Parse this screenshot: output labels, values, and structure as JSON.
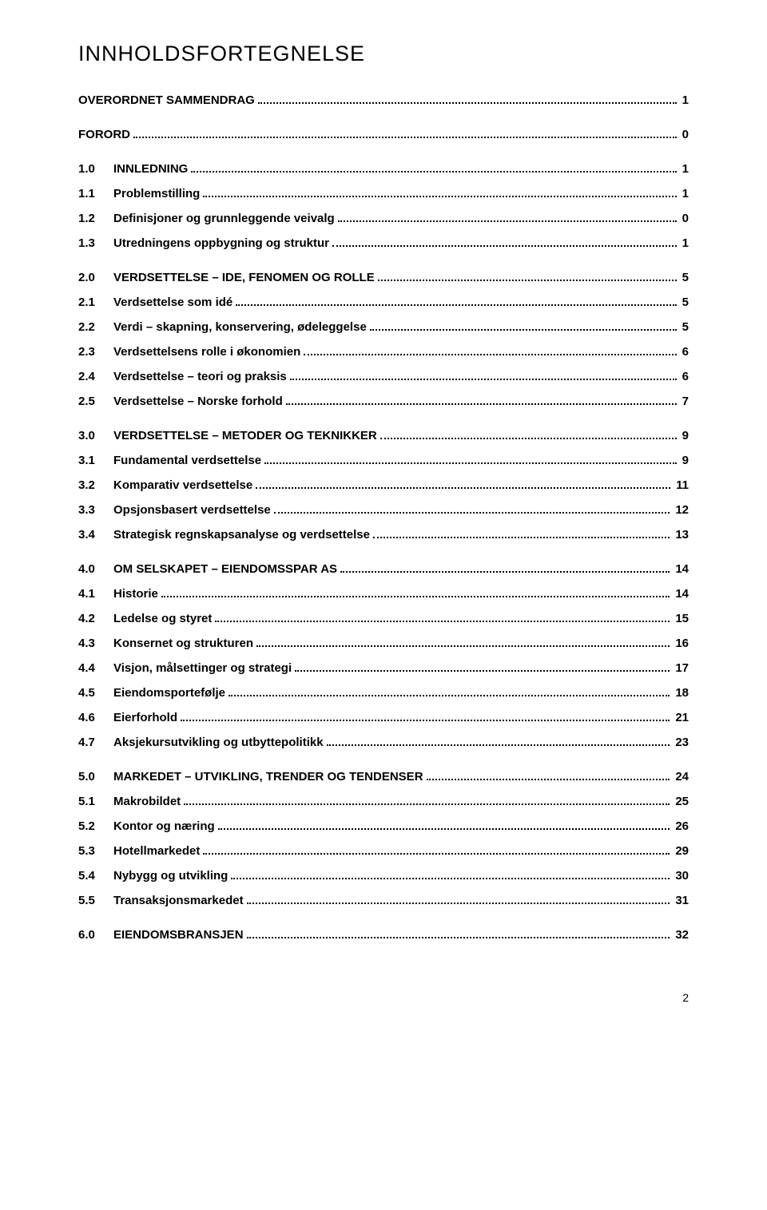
{
  "title": "INNHOLDSFORTEGNELSE",
  "footer_page": "2",
  "entries": [
    {
      "level": "top",
      "first": true,
      "num": "",
      "label": "OVERORDNET SAMMENDRAG",
      "page": "1"
    },
    {
      "level": "top",
      "num": "",
      "label": "FORORD",
      "page": "0"
    },
    {
      "level": "top",
      "num": "1.0",
      "label": "INNLEDNING",
      "page": "1"
    },
    {
      "level": "sub",
      "num": "1.1",
      "label": "Problemstilling",
      "page": "1"
    },
    {
      "level": "sub",
      "num": "1.2",
      "label": "Definisjoner og grunnleggende veivalg",
      "page": "0"
    },
    {
      "level": "sub",
      "num": "1.3",
      "label": "Utredningens oppbygning og struktur",
      "page": "1"
    },
    {
      "level": "top",
      "num": "2.0",
      "label": "VERDSETTELSE – IDE, FENOMEN OG ROLLE",
      "page": "5"
    },
    {
      "level": "sub",
      "num": "2.1",
      "label": "Verdsettelse som idé",
      "page": "5"
    },
    {
      "level": "sub",
      "num": "2.2",
      "label": "Verdi – skapning, konservering, ødeleggelse",
      "page": "5"
    },
    {
      "level": "sub",
      "num": "2.3",
      "label": "Verdsettelsens rolle i økonomien",
      "page": "6"
    },
    {
      "level": "sub",
      "num": "2.4",
      "label": "Verdsettelse – teori og praksis",
      "page": "6"
    },
    {
      "level": "sub",
      "num": "2.5",
      "label": "Verdsettelse – Norske forhold",
      "page": "7"
    },
    {
      "level": "top",
      "num": "3.0",
      "label": "VERDSETTELSE – METODER OG TEKNIKKER",
      "page": "9"
    },
    {
      "level": "sub",
      "num": "3.1",
      "label": "Fundamental verdsettelse",
      "page": "9"
    },
    {
      "level": "sub",
      "num": "3.2",
      "label": "Komparativ verdsettelse",
      "page": "11"
    },
    {
      "level": "sub",
      "num": "3.3",
      "label": "Opsjonsbasert verdsettelse",
      "page": "12"
    },
    {
      "level": "sub",
      "num": "3.4",
      "label": "Strategisk regnskapsanalyse og verdsettelse",
      "page": "13"
    },
    {
      "level": "top",
      "num": "4.0",
      "label": "OM SELSKAPET – EIENDOMSSPAR AS",
      "page": "14"
    },
    {
      "level": "sub",
      "num": "4.1",
      "label": "Historie",
      "page": "14"
    },
    {
      "level": "sub",
      "num": "4.2",
      "label": "Ledelse og styret",
      "page": "15"
    },
    {
      "level": "sub",
      "num": "4.3",
      "label": "Konsernet og strukturen",
      "page": "16"
    },
    {
      "level": "sub",
      "num": "4.4",
      "label": "Visjon, målsettinger og strategi",
      "page": "17"
    },
    {
      "level": "sub",
      "num": "4.5",
      "label": "Eiendomsportefølje",
      "page": "18"
    },
    {
      "level": "sub",
      "num": "4.6",
      "label": "Eierforhold",
      "page": "21"
    },
    {
      "level": "sub",
      "num": "4.7",
      "label": "Aksjekursutvikling og utbyttepolitikk",
      "page": "23"
    },
    {
      "level": "top",
      "num": "5.0",
      "label": "MARKEDET – UTVIKLING, TRENDER OG TENDENSER",
      "page": "24"
    },
    {
      "level": "sub",
      "num": "5.1",
      "label": "Makrobildet",
      "page": "25"
    },
    {
      "level": "sub",
      "num": "5.2",
      "label": "Kontor og næring",
      "page": "26"
    },
    {
      "level": "sub",
      "num": "5.3",
      "label": "Hotellmarkedet",
      "page": "29"
    },
    {
      "level": "sub",
      "num": "5.4",
      "label": "Nybygg og utvikling",
      "page": "30"
    },
    {
      "level": "sub",
      "num": "5.5",
      "label": "Transaksjonsmarkedet",
      "page": "31"
    },
    {
      "level": "top",
      "num": "6.0",
      "label": "EIENDOMSBRANSJEN",
      "page": "32"
    }
  ]
}
